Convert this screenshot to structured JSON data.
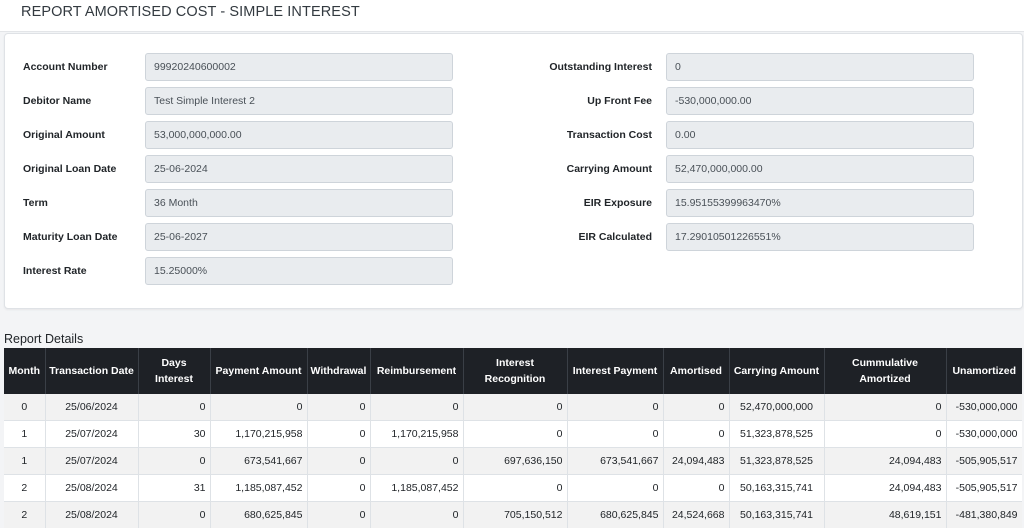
{
  "page": {
    "title": "REPORT AMORTISED COST - SIMPLE INTEREST"
  },
  "left_fields": [
    {
      "label": "Account Number",
      "value": "99920240600002"
    },
    {
      "label": "Debitor Name",
      "value": "Test Simple Interest 2"
    },
    {
      "label": "Original Amount",
      "value": "53,000,000,000.00"
    },
    {
      "label": "Original Loan Date",
      "value": "25-06-2024"
    },
    {
      "label": "Term",
      "value": "36 Month"
    },
    {
      "label": "Maturity Loan Date",
      "value": "25-06-2027"
    },
    {
      "label": "Interest Rate",
      "value": "15.25000%"
    }
  ],
  "right_fields": [
    {
      "label": "Outstanding Interest",
      "value": "0"
    },
    {
      "label": "Up Front Fee",
      "value": "-530,000,000.00"
    },
    {
      "label": "Transaction Cost",
      "value": "0.00"
    },
    {
      "label": "Carrying Amount",
      "value": "52,470,000,000.00"
    },
    {
      "label": "EIR Exposure",
      "value": "15.95155399963470%"
    },
    {
      "label": "EIR Calculated",
      "value": "17.29010501226551%"
    }
  ],
  "report": {
    "title": "Report Details",
    "columns": [
      "Month",
      "Transaction Date",
      "Days Interest",
      "Payment Amount",
      "Withdrawal",
      "Reimbursement",
      "Interest Recognition",
      "Interest Payment",
      "Amortised",
      "Carrying Amount",
      "Cummulative Amortized",
      "Unamortized"
    ],
    "rows": [
      [
        "0",
        "25/06/2024",
        "0",
        "0",
        "0",
        "0",
        "0",
        "0",
        "0",
        "52,470,000,000",
        "0",
        "-530,000,000"
      ],
      [
        "1",
        "25/07/2024",
        "30",
        "1,170,215,958",
        "0",
        "1,170,215,958",
        "0",
        "0",
        "0",
        "51,323,878,525",
        "0",
        "-530,000,000"
      ],
      [
        "1",
        "25/07/2024",
        "0",
        "673,541,667",
        "0",
        "0",
        "697,636,150",
        "673,541,667",
        "24,094,483",
        "51,323,878,525",
        "24,094,483",
        "-505,905,517"
      ],
      [
        "2",
        "25/08/2024",
        "31",
        "1,185,087,452",
        "0",
        "1,185,087,452",
        "0",
        "0",
        "0",
        "50,163,315,741",
        "24,094,483",
        "-505,905,517"
      ],
      [
        "2",
        "25/08/2024",
        "0",
        "680,625,845",
        "0",
        "0",
        "705,150,512",
        "680,625,845",
        "24,524,668",
        "50,163,315,741",
        "48,619,151",
        "-481,380,849"
      ]
    ]
  }
}
